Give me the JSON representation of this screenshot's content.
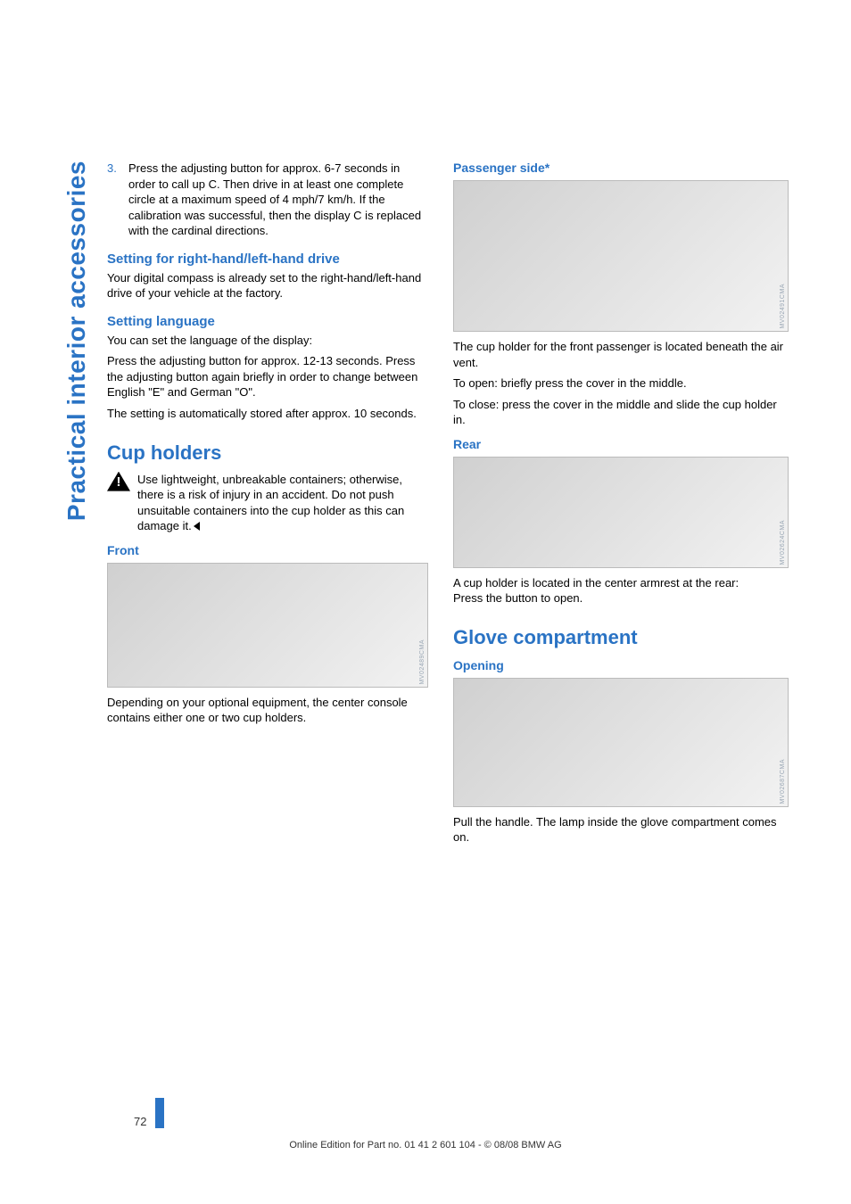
{
  "side_label": "Practical interior accessories",
  "page_number": "72",
  "footer": "Online Edition for Part no. 01 41 2 601 104 - © 08/08 BMW AG",
  "left": {
    "step_num": "3.",
    "step_text": "Press the adjusting button for approx. 6-7 seconds in order to call up C. Then drive in at least one complete circle at a maximum speed of 4 mph/7 km/h. If the calibration was successful, then the display C is replaced with the cardinal directions.",
    "h_drive": "Setting for right-hand/left-hand drive",
    "p_drive": "Your digital compass is already set to the right-hand/left-hand drive of your vehicle at the factory.",
    "h_lang": "Setting language",
    "p_lang1": "You can set the language of the display:",
    "p_lang2": "Press the adjusting button for approx. 12-13 seconds. Press the adjusting button again briefly in order to change between English \"E\" and German \"O\".",
    "p_lang3": "The setting is automatically stored after approx. 10 seconds.",
    "h_cup": "Cup holders",
    "p_cup_warn": "Use lightweight, unbreakable containers; otherwise, there is a risk of injury in an accident. Do not push unsuitable containers into the cup holder as this can damage it.",
    "h_front": "Front",
    "p_front": "Depending on your optional equipment, the center console contains either one or two cup holders.",
    "img_front_code": "MV02489CMA"
  },
  "right": {
    "h_pass": "Passenger side",
    "h_pass_star": "*",
    "img_pass_code": "MV02491CMA",
    "p_pass1": "The cup holder for the front passenger is located beneath the air vent.",
    "p_pass2": "To open: briefly press the cover in the middle.",
    "p_pass3": "To close: press the cover in the middle and slide the cup holder in.",
    "h_rear": "Rear",
    "img_rear_code": "MV02624CMA",
    "p_rear1": "A cup holder is located in the center armrest at the rear:",
    "p_rear2": "Press the button to open.",
    "h_glove": "Glove compartment",
    "h_open": "Opening",
    "img_glove_code": "MV02687CMA",
    "p_glove": "Pull the handle. The lamp inside the glove compartment comes on."
  },
  "img_heights": {
    "front": 140,
    "pass": 170,
    "rear": 125,
    "glove": 145
  }
}
